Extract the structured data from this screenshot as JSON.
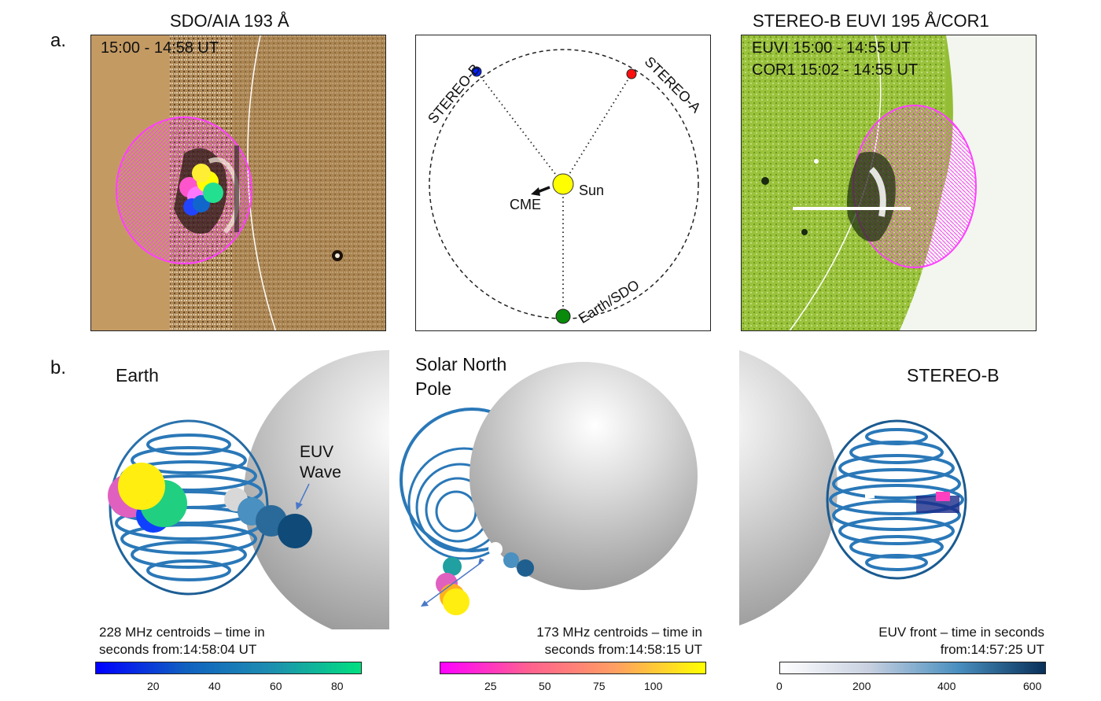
{
  "panel_a_label": "a.",
  "panel_b_label": "b.",
  "panel_a": {
    "left_title": "SDO/AIA 193 Å",
    "left_time": "15:00 - 14:58 UT",
    "middle": {
      "stereo_b": "STEREO-B",
      "stereo_a": "STEREO-A",
      "sun": "Sun",
      "cme": "CME",
      "earth": "Earth/SDO"
    },
    "right_title": "STEREO-B EUVI 195  Å/COR1",
    "right_line1": "EUVI 15:00 - 14:55 UT",
    "right_line2": "COR1 15:02 - 14:55 UT"
  },
  "panel_b": {
    "left_view": "Earth",
    "euv_wave_line1": "EUV",
    "euv_wave_line2": "Wave",
    "middle_view_line1": "Solar North",
    "middle_view_line2": "Pole",
    "right_view": "STEREO-B"
  },
  "colorbars": [
    {
      "label_line1": "228 MHz centroids – time in",
      "label_line2": "seconds from:14:58:04 UT",
      "ticks": [
        "20",
        "40",
        "60",
        "80"
      ],
      "colors": [
        "#0000ff",
        "#1060c0",
        "#1e8fb0",
        "#00e080"
      ]
    },
    {
      "label_line1": "173 MHz centroids – time in",
      "label_line2": "seconds from:14:58:15 UT",
      "ticks": [
        "25",
        "50",
        "75",
        "100"
      ],
      "colors": [
        "#ff00ff",
        "#ff6090",
        "#ffa060",
        "#ffff00"
      ]
    },
    {
      "label_line1": "EUV front – time in seconds",
      "label_line2": "from:14:57:25 UT",
      "ticks": [
        "0",
        "200",
        "400",
        "600"
      ],
      "colors": [
        "#ffffff",
        "#c8d0e0",
        "#4a90c0",
        "#08305a"
      ]
    }
  ]
}
